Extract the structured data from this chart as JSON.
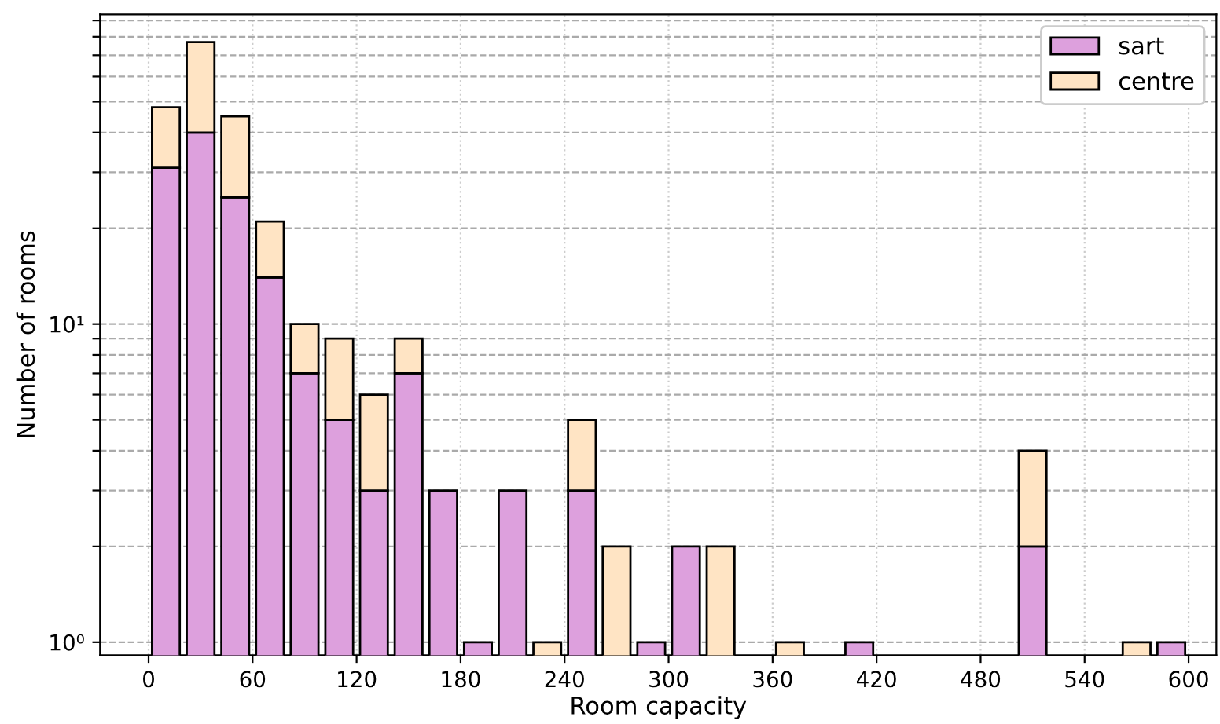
{
  "chart_data": {
    "type": "bar",
    "stacked": true,
    "xlabel": "Room capacity",
    "ylabel": "Number of rooms",
    "x": [
      10,
      30,
      50,
      70,
      90,
      110,
      130,
      150,
      170,
      190,
      210,
      230,
      250,
      270,
      290,
      310,
      330,
      350,
      370,
      390,
      410,
      430,
      450,
      470,
      490,
      510,
      530,
      550,
      570,
      590
    ],
    "series": [
      {
        "name": "sart",
        "color": "#dda0dd",
        "values": [
          31,
          40,
          25,
          14,
          7,
          5,
          3,
          7,
          3,
          1,
          3,
          null,
          3,
          null,
          1,
          2,
          null,
          null,
          null,
          null,
          1,
          null,
          null,
          null,
          null,
          2,
          null,
          null,
          null,
          1
        ]
      },
      {
        "name": "centre",
        "color": "#ffe4c4",
        "values": [
          17,
          37,
          20,
          7,
          3,
          4,
          3,
          2,
          null,
          null,
          null,
          1,
          2,
          2,
          null,
          null,
          2,
          null,
          1,
          null,
          null,
          null,
          null,
          null,
          null,
          2,
          null,
          null,
          1,
          null
        ]
      }
    ],
    "log": "y",
    "xlim": [
      -28,
      616
    ],
    "xticks": [
      0,
      60,
      120,
      180,
      240,
      300,
      360,
      420,
      480,
      540,
      600
    ],
    "ylim": [
      0.91,
      94
    ],
    "yticks": [
      {
        "value": 1,
        "label": "10⁰"
      },
      {
        "value": 2,
        "label": null
      },
      {
        "value": 3,
        "label": null
      },
      {
        "value": 4,
        "label": null
      },
      {
        "value": 5,
        "label": null
      },
      {
        "value": 6,
        "label": null
      },
      {
        "value": 7,
        "label": null
      },
      {
        "value": 8,
        "label": null
      },
      {
        "value": 9,
        "label": null
      },
      {
        "value": 10,
        "label": "10¹"
      },
      {
        "value": 20,
        "label": null
      },
      {
        "value": 30,
        "label": null
      },
      {
        "value": 40,
        "label": null
      },
      {
        "value": 50,
        "label": null
      },
      {
        "value": 60,
        "label": null
      },
      {
        "value": 70,
        "label": null
      },
      {
        "value": 80,
        "label": null
      },
      {
        "value": 90,
        "label": null
      }
    ],
    "grid": true,
    "legend": "top right"
  }
}
